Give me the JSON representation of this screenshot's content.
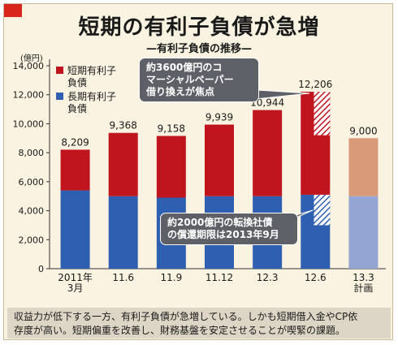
{
  "title": "短期の有利子負債が急増",
  "subtitle": "—有利子負債の推移—",
  "chart_data": {
    "type": "bar",
    "stacked": true,
    "ylabel": "(億円)",
    "ylim": [
      0,
      14000
    ],
    "yticks": [
      "0",
      "2,000",
      "4,000",
      "6,000",
      "8,000",
      "10,000",
      "12,000",
      "14,000"
    ],
    "categories": [
      [
        "2011年",
        "3月"
      ],
      [
        "11.6"
      ],
      [
        "11.9"
      ],
      [
        "11.12"
      ],
      [
        "12.3"
      ],
      [
        "12.6"
      ],
      [
        "13.3",
        "計画"
      ]
    ],
    "series": [
      {
        "name": "長期有利子負債",
        "color": "#2f5fb0",
        "values": [
          5400,
          5000,
          4900,
          5000,
          5000,
          5100,
          5000
        ]
      },
      {
        "name": "短期有利子負債",
        "color": "#c0141f",
        "values": [
          2809,
          4368,
          4258,
          4939,
          5944,
          7106,
          4000
        ]
      }
    ],
    "totals": [
      "8,209",
      "9,368",
      "9,158",
      "9,939",
      "10,944",
      "12,206",
      "9,000"
    ],
    "plan_colors": {
      "long": "#93a5d3",
      "short": "#d99a78"
    },
    "legend_position": "top-left",
    "grid": false
  },
  "legend": [
    {
      "lines": [
        "短期有利子",
        "負債"
      ],
      "color": "#c0141f"
    },
    {
      "lines": [
        "長期有利子",
        "負債"
      ],
      "color": "#2f5fb0"
    }
  ],
  "callouts": {
    "cp": [
      "約3600億円のコ",
      "マーシャルペーパー",
      "借り換えが焦点"
    ],
    "bond": [
      "約2000億円の転換社債",
      "の償還期限は2013年9月"
    ]
  },
  "caption": [
    "収益力が低下する一方、有利子負債が急増している。しかも短期借入金やCP依",
    "存度が高い。短期偏重を改善し、財務基盤を安定させることが喫緊の課題。"
  ]
}
